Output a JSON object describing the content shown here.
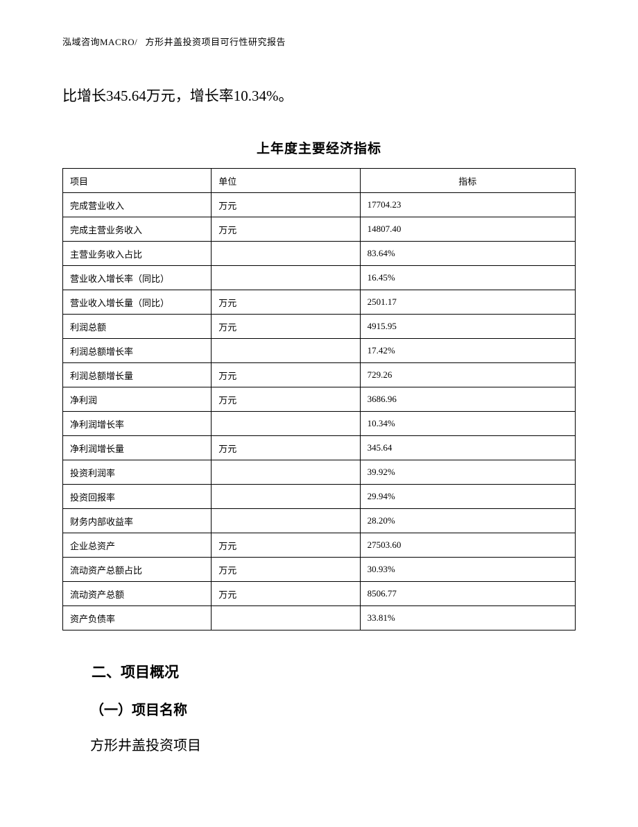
{
  "header": {
    "company": "泓域咨询MACRO/",
    "doc_title": "方形井盖投资项目可行性研究报告"
  },
  "intro_text": "比增长345.64万元，增长率10.34%。",
  "table": {
    "title": "上年度主要经济指标",
    "columns": [
      "项目",
      "单位",
      "指标"
    ],
    "rows": [
      [
        "完成营业收入",
        "万元",
        "17704.23"
      ],
      [
        "完成主营业务收入",
        "万元",
        "14807.40"
      ],
      [
        "主营业务收入占比",
        "",
        "83.64%"
      ],
      [
        "营业收入增长率（同比）",
        "",
        "16.45%"
      ],
      [
        "营业收入增长量（同比）",
        "万元",
        "2501.17"
      ],
      [
        "利润总额",
        "万元",
        "4915.95"
      ],
      [
        "利润总额增长率",
        "",
        "17.42%"
      ],
      [
        "利润总额增长量",
        "万元",
        "729.26"
      ],
      [
        "净利润",
        "万元",
        "3686.96"
      ],
      [
        "净利润增长率",
        "",
        "10.34%"
      ],
      [
        "净利润增长量",
        "万元",
        "345.64"
      ],
      [
        "投资利润率",
        "",
        "39.92%"
      ],
      [
        "投资回报率",
        "",
        "29.94%"
      ],
      [
        "财务内部收益率",
        "",
        "28.20%"
      ],
      [
        "企业总资产",
        "万元",
        "27503.60"
      ],
      [
        "流动资产总额占比",
        "万元",
        "30.93%"
      ],
      [
        "流动资产总额",
        "万元",
        "8506.77"
      ],
      [
        "资产负债率",
        "",
        "33.81%"
      ]
    ]
  },
  "sections": {
    "heading": "二、项目概况",
    "sub_heading": "（一）项目名称",
    "paragraph": "方形井盖投资项目"
  }
}
